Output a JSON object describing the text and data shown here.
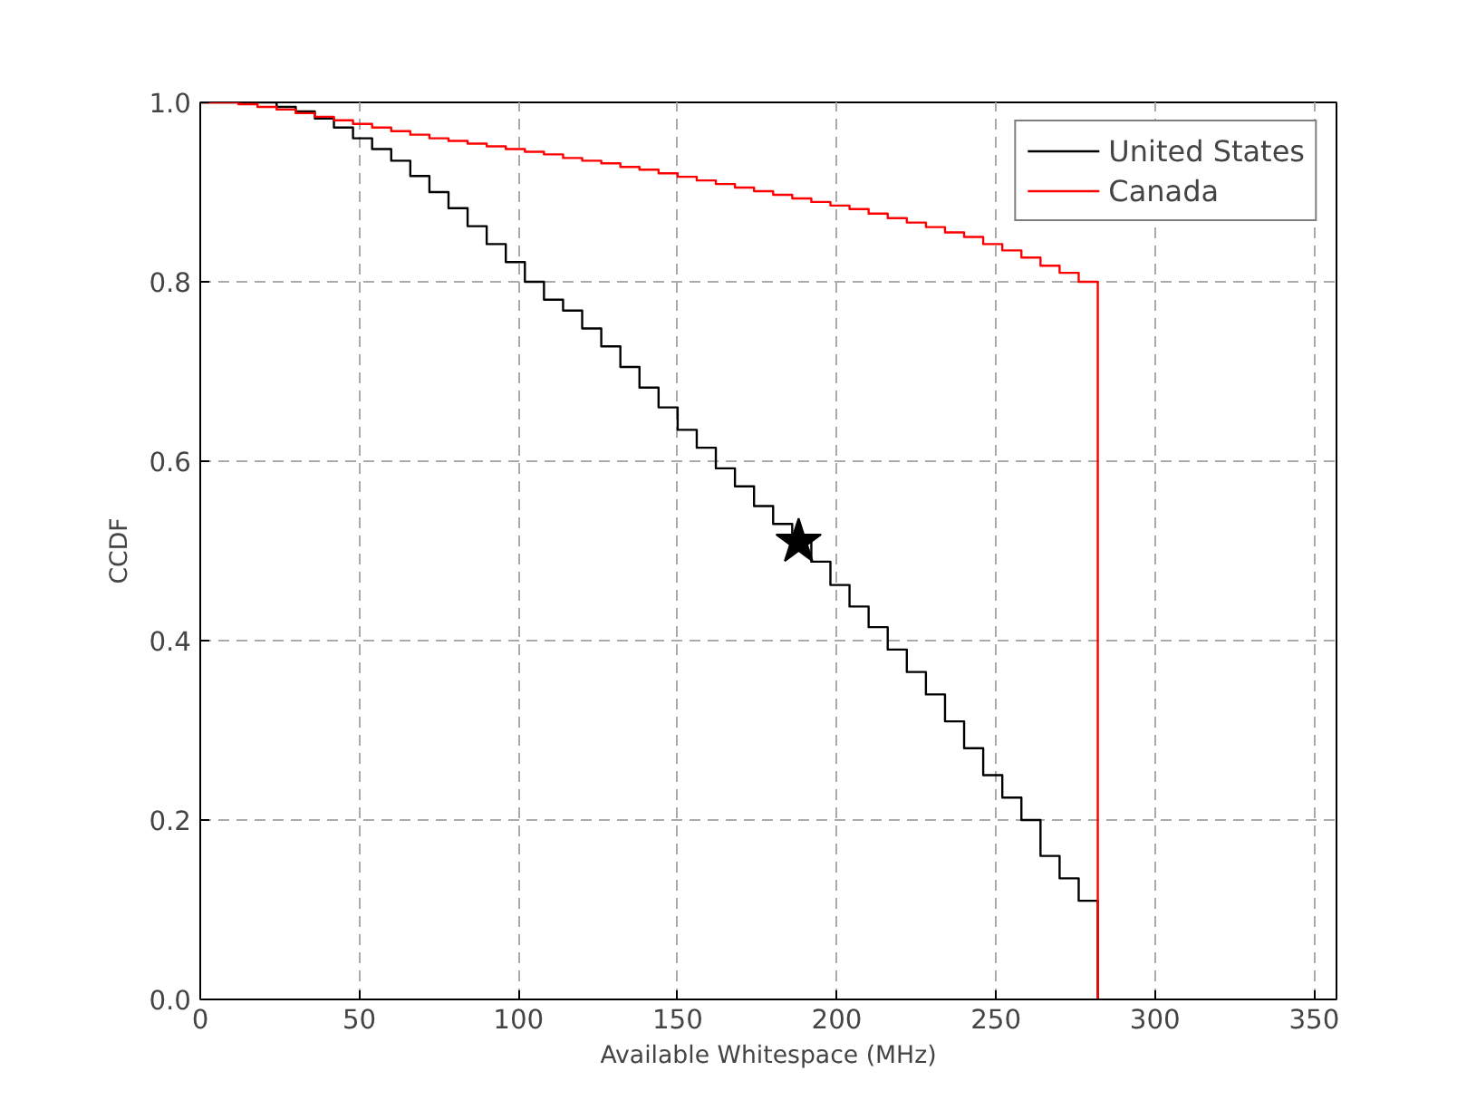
{
  "chart_data": {
    "type": "step",
    "xlabel": "Available Whitespace (MHz)",
    "ylabel": "CCDF",
    "xlim": [
      0,
      357
    ],
    "ylim": [
      0,
      1.0
    ],
    "xticks": [
      0,
      50,
      100,
      150,
      200,
      250,
      300,
      350
    ],
    "yticks": [
      {
        "value": 0,
        "label": "0.0"
      },
      {
        "value": 0.2,
        "label": "0.2"
      },
      {
        "value": 0.4,
        "label": "0.4"
      },
      {
        "value": 0.6,
        "label": "0.6"
      },
      {
        "value": 0.8,
        "label": "0.8"
      },
      {
        "value": 1.0,
        "label": "1.0"
      }
    ],
    "grid": true,
    "legend": "top right",
    "series": [
      {
        "name": "United States",
        "color": "#000000",
        "x": [
          0,
          24,
          30,
          36,
          42,
          48,
          54,
          60,
          66,
          72,
          78,
          84,
          90,
          96,
          102,
          108,
          114,
          120,
          126,
          132,
          138,
          144,
          150,
          156,
          162,
          168,
          174,
          180,
          186,
          192,
          198,
          204,
          210,
          216,
          222,
          228,
          234,
          240,
          246,
          252,
          258,
          264,
          270,
          276,
          282
        ],
        "values": [
          1.0,
          0.995,
          0.99,
          0.982,
          0.972,
          0.96,
          0.948,
          0.935,
          0.918,
          0.9,
          0.882,
          0.862,
          0.842,
          0.822,
          0.8,
          0.78,
          0.768,
          0.748,
          0.728,
          0.705,
          0.682,
          0.66,
          0.635,
          0.615,
          0.592,
          0.572,
          0.55,
          0.53,
          0.51,
          0.488,
          0.462,
          0.438,
          0.415,
          0.39,
          0.365,
          0.34,
          0.31,
          0.28,
          0.25,
          0.225,
          0.2,
          0.16,
          0.135,
          0.11,
          0.0
        ]
      },
      {
        "name": "Canada",
        "color": "#ff0000",
        "x": [
          0,
          12,
          18,
          24,
          30,
          36,
          42,
          48,
          54,
          60,
          66,
          72,
          78,
          84,
          90,
          96,
          102,
          108,
          114,
          120,
          126,
          132,
          138,
          144,
          150,
          156,
          162,
          168,
          174,
          180,
          186,
          192,
          198,
          204,
          210,
          216,
          222,
          228,
          234,
          240,
          246,
          252,
          258,
          264,
          270,
          276,
          282
        ],
        "values": [
          1.0,
          0.998,
          0.995,
          0.992,
          0.988,
          0.984,
          0.98,
          0.976,
          0.972,
          0.968,
          0.964,
          0.96,
          0.957,
          0.954,
          0.951,
          0.948,
          0.945,
          0.942,
          0.938,
          0.935,
          0.932,
          0.928,
          0.925,
          0.921,
          0.917,
          0.913,
          0.909,
          0.905,
          0.901,
          0.897,
          0.893,
          0.889,
          0.885,
          0.881,
          0.876,
          0.871,
          0.866,
          0.861,
          0.855,
          0.85,
          0.842,
          0.835,
          0.827,
          0.818,
          0.81,
          0.8,
          0.0
        ]
      },
      {
        "type": "scatter",
        "marker": "star",
        "color": "#000000",
        "x": [
          188
        ],
        "values": [
          0.51
        ]
      }
    ]
  }
}
